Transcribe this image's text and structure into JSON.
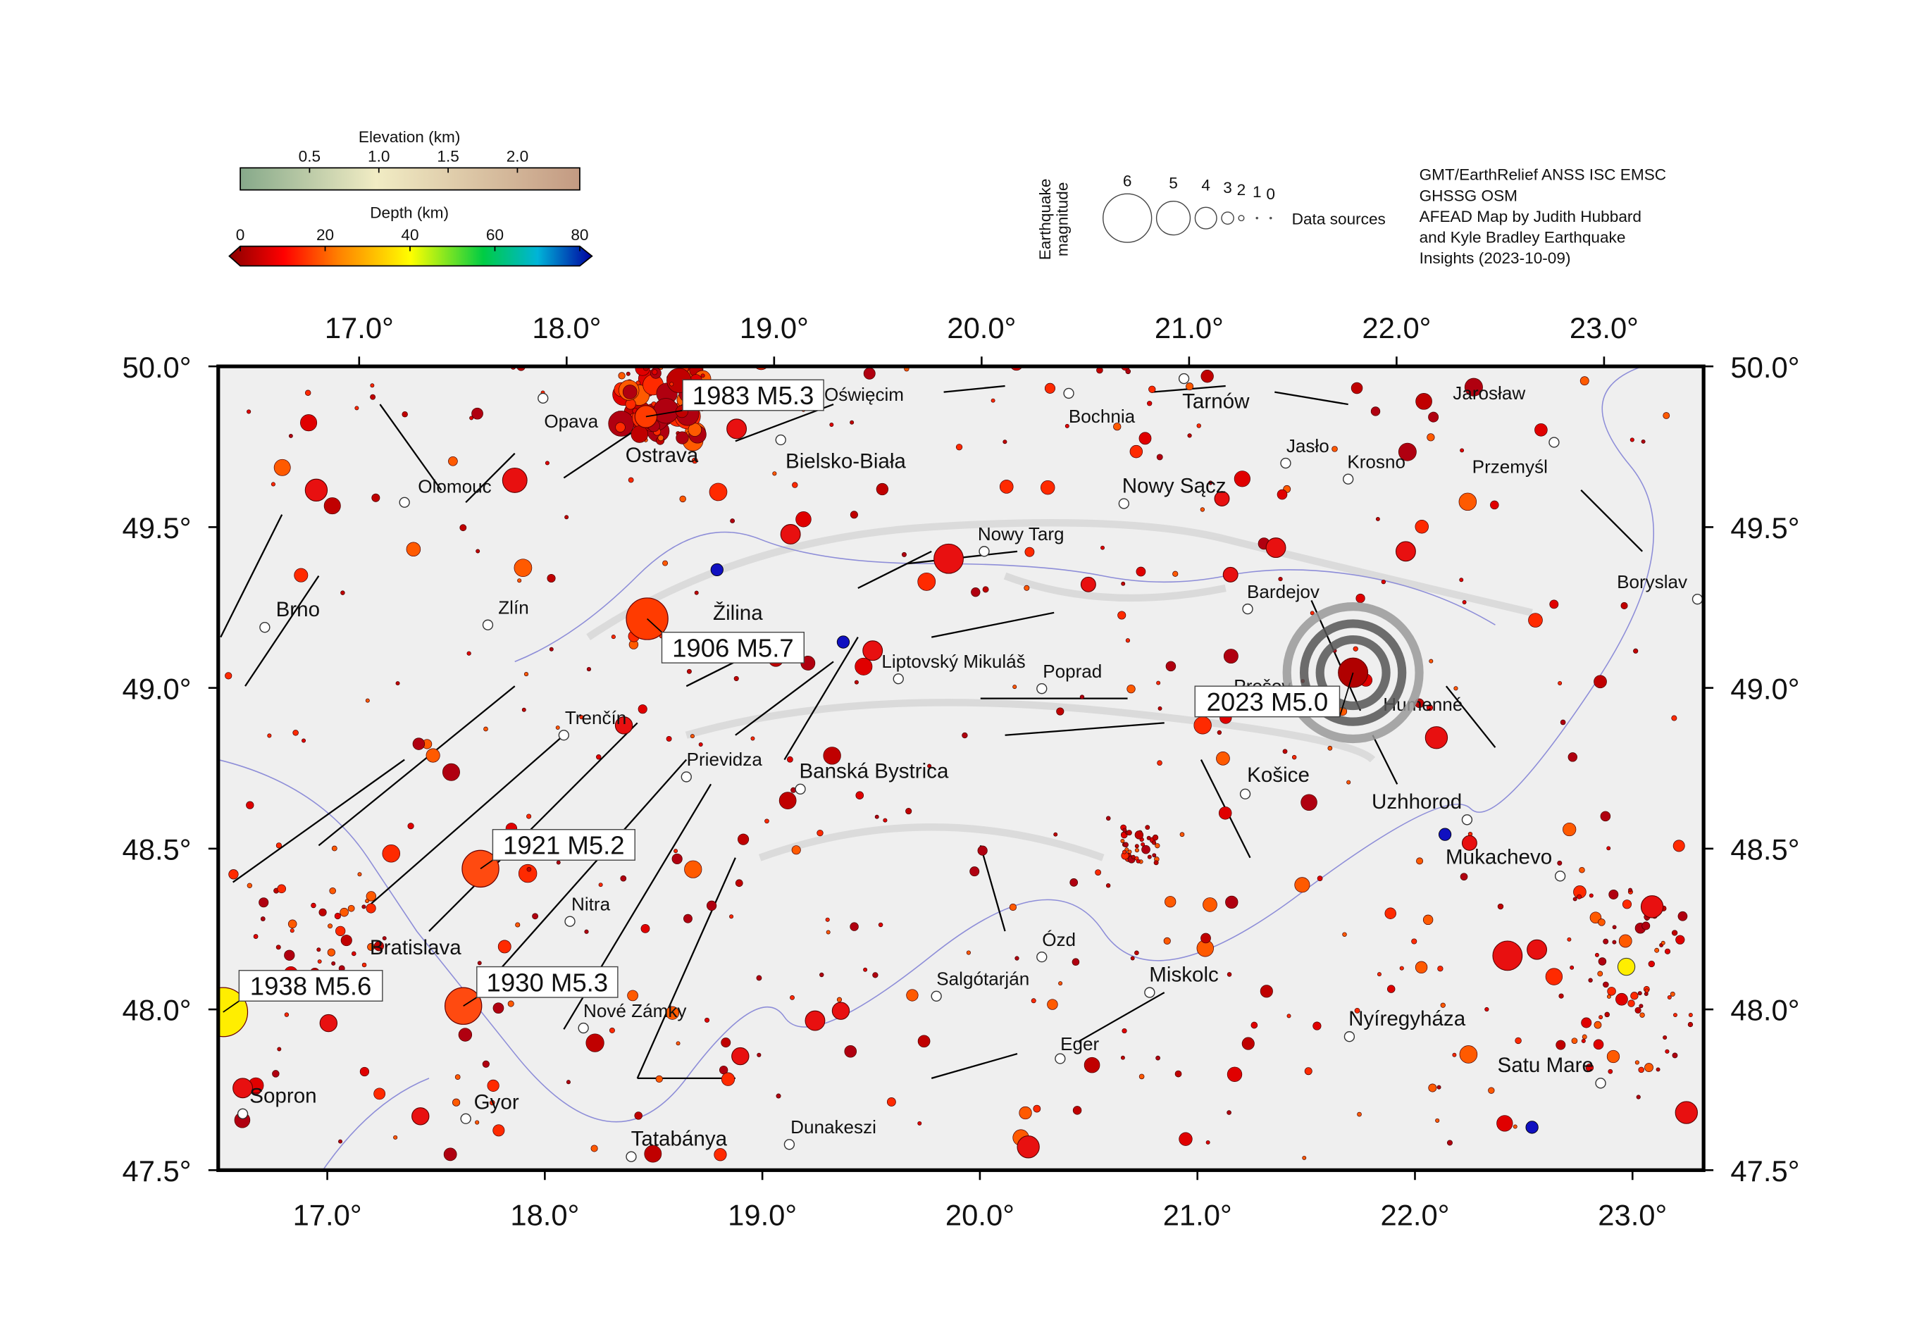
{
  "map": {
    "elevation_legend": {
      "title": "Elevation (km)",
      "range": [
        0,
        2.45
      ],
      "ticks": [
        0.5,
        {
          "value": 1.0,
          "label": "1.0"
        },
        1.5,
        {
          "value": 2.0,
          "label": "2.0"
        }
      ]
    },
    "depth_legend": {
      "title": "Depth (km)",
      "range": [
        0,
        80
      ],
      "ticks": [
        0,
        20,
        40,
        60,
        80
      ]
    },
    "magnitude_legend": {
      "title": [
        "Earthquake",
        "magnitude"
      ],
      "ticks": [
        6,
        5,
        4,
        3,
        2,
        1,
        0
      ]
    },
    "data_sources": {
      "label": "Data sources",
      "lines": [
        "GMT/EarthRelief ANSS ISC EMSC",
        "GHSSG OSM",
        "AFEAD Map by Judith Hubbard",
        "and Kyle Bradley Earthquake",
        "Insights (2023-10-09)"
      ]
    },
    "xlim": [
      16.5,
      23.35
    ],
    "xticks": [
      {
        "value": 17,
        "label": "17.0°"
      },
      {
        "value": 18,
        "label": "18.0°"
      },
      {
        "value": 19,
        "label": "19.0°"
      },
      {
        "value": 20,
        "label": "20.0°"
      },
      {
        "value": 21,
        "label": "21.0°"
      },
      {
        "value": 22,
        "label": "22.0°"
      },
      {
        "value": 23,
        "label": "23.0°"
      }
    ],
    "ylim": [
      47.5,
      50.0
    ],
    "yticks": [
      {
        "value": 47.5,
        "label": "47.5°"
      },
      {
        "value": 48.0,
        "label": "48.0°"
      },
      {
        "value": 48.5,
        "label": "48.5°"
      },
      {
        "value": 49.0,
        "label": "49.0°"
      },
      {
        "value": 49.5,
        "label": "49.5°"
      },
      {
        "value": 50.0,
        "label": "50.0°"
      }
    ],
    "cities": [
      "Opava",
      "Ostrava",
      "Olomouc",
      "Oświęcim",
      "Bielsko-Biała",
      "Bochnia",
      "Tarnów",
      "Jarosław",
      "Jasło",
      "Krosno",
      "Przemyśl",
      "Nowy Sącz",
      "Nowy Targ",
      "Brno",
      "Zlín",
      "Žilina",
      "Liptovský Mikuláš",
      "Poprad",
      "Bardejov",
      "Boryslav",
      "Prešov",
      "Humenné",
      "Trenčín",
      "Prievidza",
      "Banská Bystrica",
      "Košice",
      "Uzhhorod",
      "Mukachevo",
      "Nitra",
      "Bratislava",
      "Ózd",
      "Salgótarján",
      "Miskolc",
      "Nové Zámky",
      "Nyíregyháza",
      "Eger",
      "Satu Mare",
      "Sopron",
      "Gyor",
      "Dunakeszi",
      "Tatabánya"
    ],
    "events": [
      "1983 M5.3",
      "1906 M5.7",
      "2023 M5.0",
      "1921 M5.2",
      "1930 M5.3",
      "1938 M5.6"
    ]
  }
}
